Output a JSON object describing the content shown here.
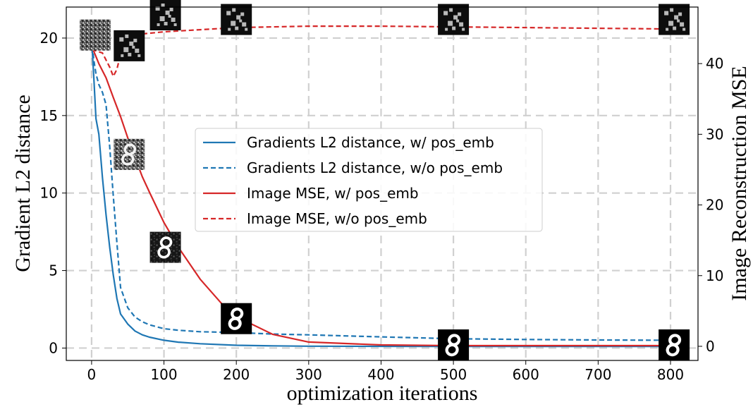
{
  "chart_data": {
    "type": "line",
    "xlabel": "optimization iterations",
    "ylabel_left": "Gradient L2 distance",
    "ylabel_right": "Image Reconstruction MSE",
    "xlim": [
      -35,
      838
    ],
    "ylim_left": [
      -0.8,
      22.0
    ],
    "ylim_right": [
      -2.0,
      48.0
    ],
    "xticks": [
      0,
      100,
      200,
      300,
      400,
      500,
      600,
      700,
      800
    ],
    "yticks_left": [
      0,
      5,
      10,
      15,
      20
    ],
    "yticks_right": [
      0,
      10,
      20,
      30,
      40
    ],
    "grid": true,
    "grid_style": "dashed",
    "legend_position": "center",
    "series": [
      {
        "name": "Gradients L2 distance, w/ pos_emb",
        "axis": "left",
        "color": "#1f77b4",
        "style": "solid",
        "x": [
          0,
          3,
          6,
          10,
          15,
          20,
          25,
          30,
          35,
          40,
          50,
          60,
          70,
          80,
          100,
          120,
          150,
          200,
          250,
          300,
          400,
          500,
          600,
          700,
          800
        ],
        "y": [
          20.0,
          17.5,
          14.8,
          13.8,
          11.0,
          8.6,
          6.5,
          4.7,
          3.2,
          2.2,
          1.55,
          1.1,
          0.85,
          0.7,
          0.5,
          0.38,
          0.28,
          0.18,
          0.14,
          0.12,
          0.11,
          0.1,
          0.1,
          0.1,
          0.1
        ]
      },
      {
        "name": "Gradients L2 distance, w/o pos_emb",
        "axis": "left",
        "color": "#1f77b4",
        "style": "dashed",
        "x": [
          0,
          3,
          6,
          10,
          15,
          20,
          25,
          30,
          35,
          40,
          50,
          60,
          70,
          80,
          100,
          120,
          150,
          200,
          250,
          300,
          400,
          500,
          600,
          700,
          800
        ],
        "y": [
          20.0,
          18.6,
          17.7,
          17.0,
          16.5,
          15.7,
          13.0,
          9.8,
          6.8,
          3.9,
          2.6,
          2.0,
          1.7,
          1.5,
          1.25,
          1.15,
          1.05,
          1.0,
          0.9,
          0.85,
          0.72,
          0.6,
          0.55,
          0.52,
          0.5
        ]
      },
      {
        "name": "Image MSE, w/ pos_emb",
        "axis": "right",
        "color": "#d62728",
        "style": "solid",
        "x": [
          0,
          10,
          20,
          30,
          40,
          50,
          60,
          70,
          80,
          100,
          120,
          150,
          180,
          200,
          250,
          300,
          400,
          500,
          600,
          700,
          800
        ],
        "y": [
          42.5,
          40.0,
          38.0,
          35.2,
          32.5,
          29.5,
          26.7,
          24.0,
          21.8,
          17.5,
          14.0,
          9.5,
          6.0,
          4.2,
          1.7,
          0.6,
          0.2,
          0.1,
          0.1,
          0.1,
          0.1
        ]
      },
      {
        "name": "Image MSE, w/o pos_emb",
        "axis": "right",
        "color": "#d62728",
        "style": "dashed",
        "x": [
          0,
          15,
          25,
          30,
          35,
          40,
          45,
          55,
          70,
          100,
          150,
          200,
          300,
          400,
          500,
          600,
          700,
          800
        ],
        "y": [
          42.0,
          41.5,
          39.5,
          38.2,
          39.2,
          41.3,
          42.8,
          43.8,
          44.2,
          44.5,
          44.8,
          45.1,
          45.3,
          45.3,
          45.2,
          45.1,
          45.0,
          44.9
        ]
      }
    ],
    "thumbnails": [
      {
        "x": 5,
        "y_left": 20.2,
        "kind": "noise"
      },
      {
        "x": 52,
        "y_left": 19.5,
        "kind": "noisy-blob"
      },
      {
        "x": 102,
        "y_left": 21.5,
        "kind": "noisy-blob"
      },
      {
        "x": 200,
        "y_left": 21.2,
        "kind": "noisy-blob"
      },
      {
        "x": 500,
        "y_left": 21.2,
        "kind": "noisy-blob"
      },
      {
        "x": 805,
        "y_left": 21.2,
        "kind": "noisy-blob"
      },
      {
        "x": 52,
        "y_left": 12.5,
        "kind": "digit-noisy"
      },
      {
        "x": 102,
        "y_left": 6.5,
        "kind": "digit-soft"
      },
      {
        "x": 200,
        "y_left": 1.9,
        "kind": "digit-clean"
      },
      {
        "x": 500,
        "y_left": 0.2,
        "kind": "digit-clean"
      },
      {
        "x": 805,
        "y_left": 0.2,
        "kind": "digit-clean"
      }
    ]
  }
}
